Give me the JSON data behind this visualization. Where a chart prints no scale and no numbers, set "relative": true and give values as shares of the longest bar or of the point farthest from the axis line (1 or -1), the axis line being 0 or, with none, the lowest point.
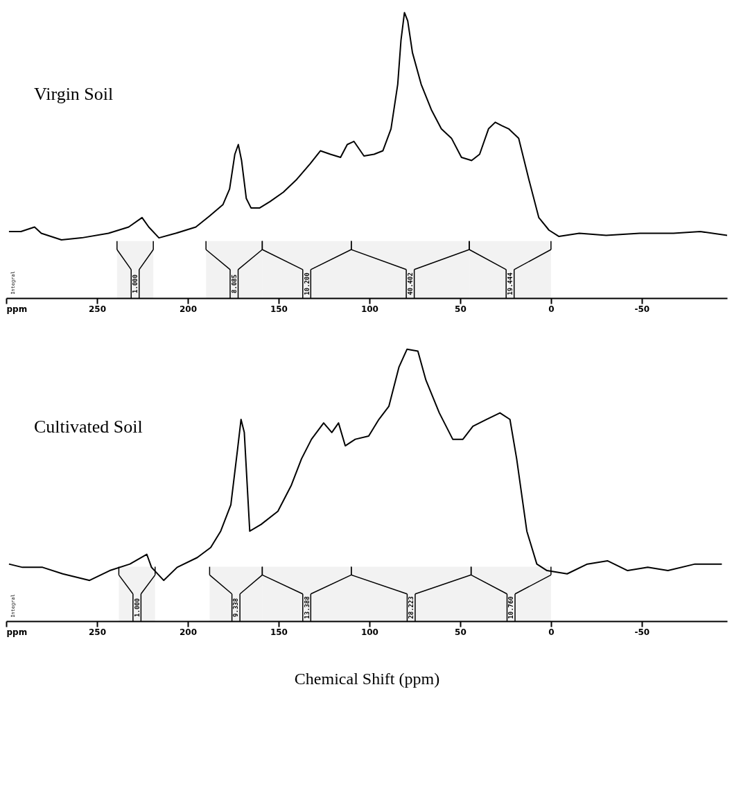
{
  "chart_data": [
    {
      "type": "line",
      "title": "Virgin Soil",
      "ylabel": "Integral",
      "relative": true,
      "grid": false,
      "marker": "none",
      "line_style": "solid",
      "xlim": [
        300,
        -97
      ],
      "xticks": [
        {
          "value": 300,
          "label": "ppm"
        },
        250,
        200,
        150,
        100,
        50,
        0,
        -50
      ],
      "x": [
        298.5,
        291.9,
        284.4,
        280.7,
        269.6,
        258.5,
        243.7,
        232.6,
        225.2,
        221.5,
        215.9,
        206.7,
        195.6,
        188.1,
        180.7,
        177.0,
        174.1,
        172.2,
        170.4,
        167.8,
        165.2,
        160.4,
        154.8,
        147.4,
        140.0,
        132.6,
        127.0,
        121.5,
        115.9,
        112.2,
        108.5,
        103.0,
        97.4,
        92.6,
        88.1,
        84.4,
        82.6,
        80.7,
        78.9,
        76.3,
        71.5,
        65.9,
        60.4,
        54.8,
        49.3,
        43.7,
        39.3,
        34.4,
        30.7,
        27.0,
        23.3,
        17.8,
        12.2,
        6.7,
        1.1,
        -4.4,
        -15.6,
        -30.4,
        -48.9,
        -67.4,
        -82.2,
        -97.0
      ],
      "series": [
        {
          "color": "#000000",
          "values": [
            0.233,
            0.233,
            0.249,
            0.227,
            0.204,
            0.211,
            0.227,
            0.249,
            0.282,
            0.249,
            0.211,
            0.227,
            0.249,
            0.287,
            0.327,
            0.382,
            0.504,
            0.538,
            0.482,
            0.349,
            0.316,
            0.316,
            0.338,
            0.371,
            0.416,
            0.471,
            0.516,
            0.504,
            0.493,
            0.538,
            0.549,
            0.498,
            0.504,
            0.516,
            0.593,
            0.749,
            0.904,
            1,
            0.971,
            0.86,
            0.749,
            0.66,
            0.593,
            0.56,
            0.493,
            0.482,
            0.504,
            0.593,
            0.616,
            0.604,
            0.593,
            0.56,
            0.416,
            0.282,
            0.238,
            0.216,
            0.227,
            0.22,
            0.227,
            0.227,
            0.233,
            0.22
          ]
        }
      ],
      "bands": [
        {
          "axis": "x",
          "from": 239,
          "to": 219,
          "label": "1.000"
        },
        {
          "axis": "x",
          "from": 190,
          "to": 159,
          "label": "8.085"
        },
        {
          "axis": "x",
          "from": 159,
          "to": 110,
          "label": "10.200"
        },
        {
          "axis": "x",
          "from": 110,
          "to": 45,
          "label": "40.402"
        },
        {
          "axis": "x",
          "from": 45,
          "to": 0,
          "label": "19.444"
        }
      ]
    },
    {
      "type": "line",
      "title": "Cultivated Soil",
      "ylabel": "Integral",
      "xlabel": "Chemical Shift (ppm)",
      "relative": true,
      "grid": false,
      "marker": "none",
      "line_style": "solid",
      "xlim": [
        300,
        -97
      ],
      "xticks": [
        {
          "value": 300,
          "label": "ppm"
        },
        250,
        200,
        150,
        100,
        50,
        0,
        -50
      ],
      "x": [
        298.5,
        291.1,
        280.0,
        268.9,
        254.1,
        243.0,
        231.9,
        222.6,
        220.0,
        213.3,
        205.9,
        194.8,
        187.4,
        181.9,
        176.3,
        172.6,
        170.7,
        168.9,
        165.9,
        159.6,
        150.4,
        143.0,
        137.4,
        131.9,
        125.2,
        120.7,
        117.0,
        113.3,
        107.8,
        100.4,
        94.8,
        89.3,
        83.7,
        79.3,
        73.3,
        68.9,
        61.5,
        54.1,
        48.5,
        43.0,
        35.6,
        28.1,
        22.6,
        18.9,
        13.3,
        7.8,
        2.2,
        -8.9,
        -20.0,
        -31.1,
        -42.2,
        -53.3,
        -64.4,
        -79.3,
        -94.1
      ],
      "series": [
        {
          "color": "#000000",
          "values": [
            0.21,
            0.198,
            0.198,
            0.174,
            0.15,
            0.186,
            0.21,
            0.246,
            0.198,
            0.15,
            0.198,
            0.234,
            0.271,
            0.331,
            0.428,
            0.633,
            0.742,
            0.694,
            0.331,
            0.356,
            0.404,
            0.5,
            0.597,
            0.669,
            0.729,
            0.694,
            0.729,
            0.645,
            0.669,
            0.681,
            0.742,
            0.79,
            0.935,
            1,
            0.993,
            0.887,
            0.766,
            0.669,
            0.669,
            0.717,
            0.742,
            0.766,
            0.742,
            0.597,
            0.331,
            0.21,
            0.186,
            0.174,
            0.21,
            0.222,
            0.186,
            0.198,
            0.186,
            0.21,
            0.21
          ]
        }
      ],
      "bands": [
        {
          "axis": "x",
          "from": 238,
          "to": 218,
          "label": "1.000"
        },
        {
          "axis": "x",
          "from": 188,
          "to": 159,
          "label": "9.338"
        },
        {
          "axis": "x",
          "from": 159,
          "to": 110,
          "label": "13.388"
        },
        {
          "axis": "x",
          "from": 110,
          "to": 44,
          "label": "28.223"
        },
        {
          "axis": "x",
          "from": 44,
          "to": 0,
          "label": "10.760"
        }
      ]
    }
  ]
}
